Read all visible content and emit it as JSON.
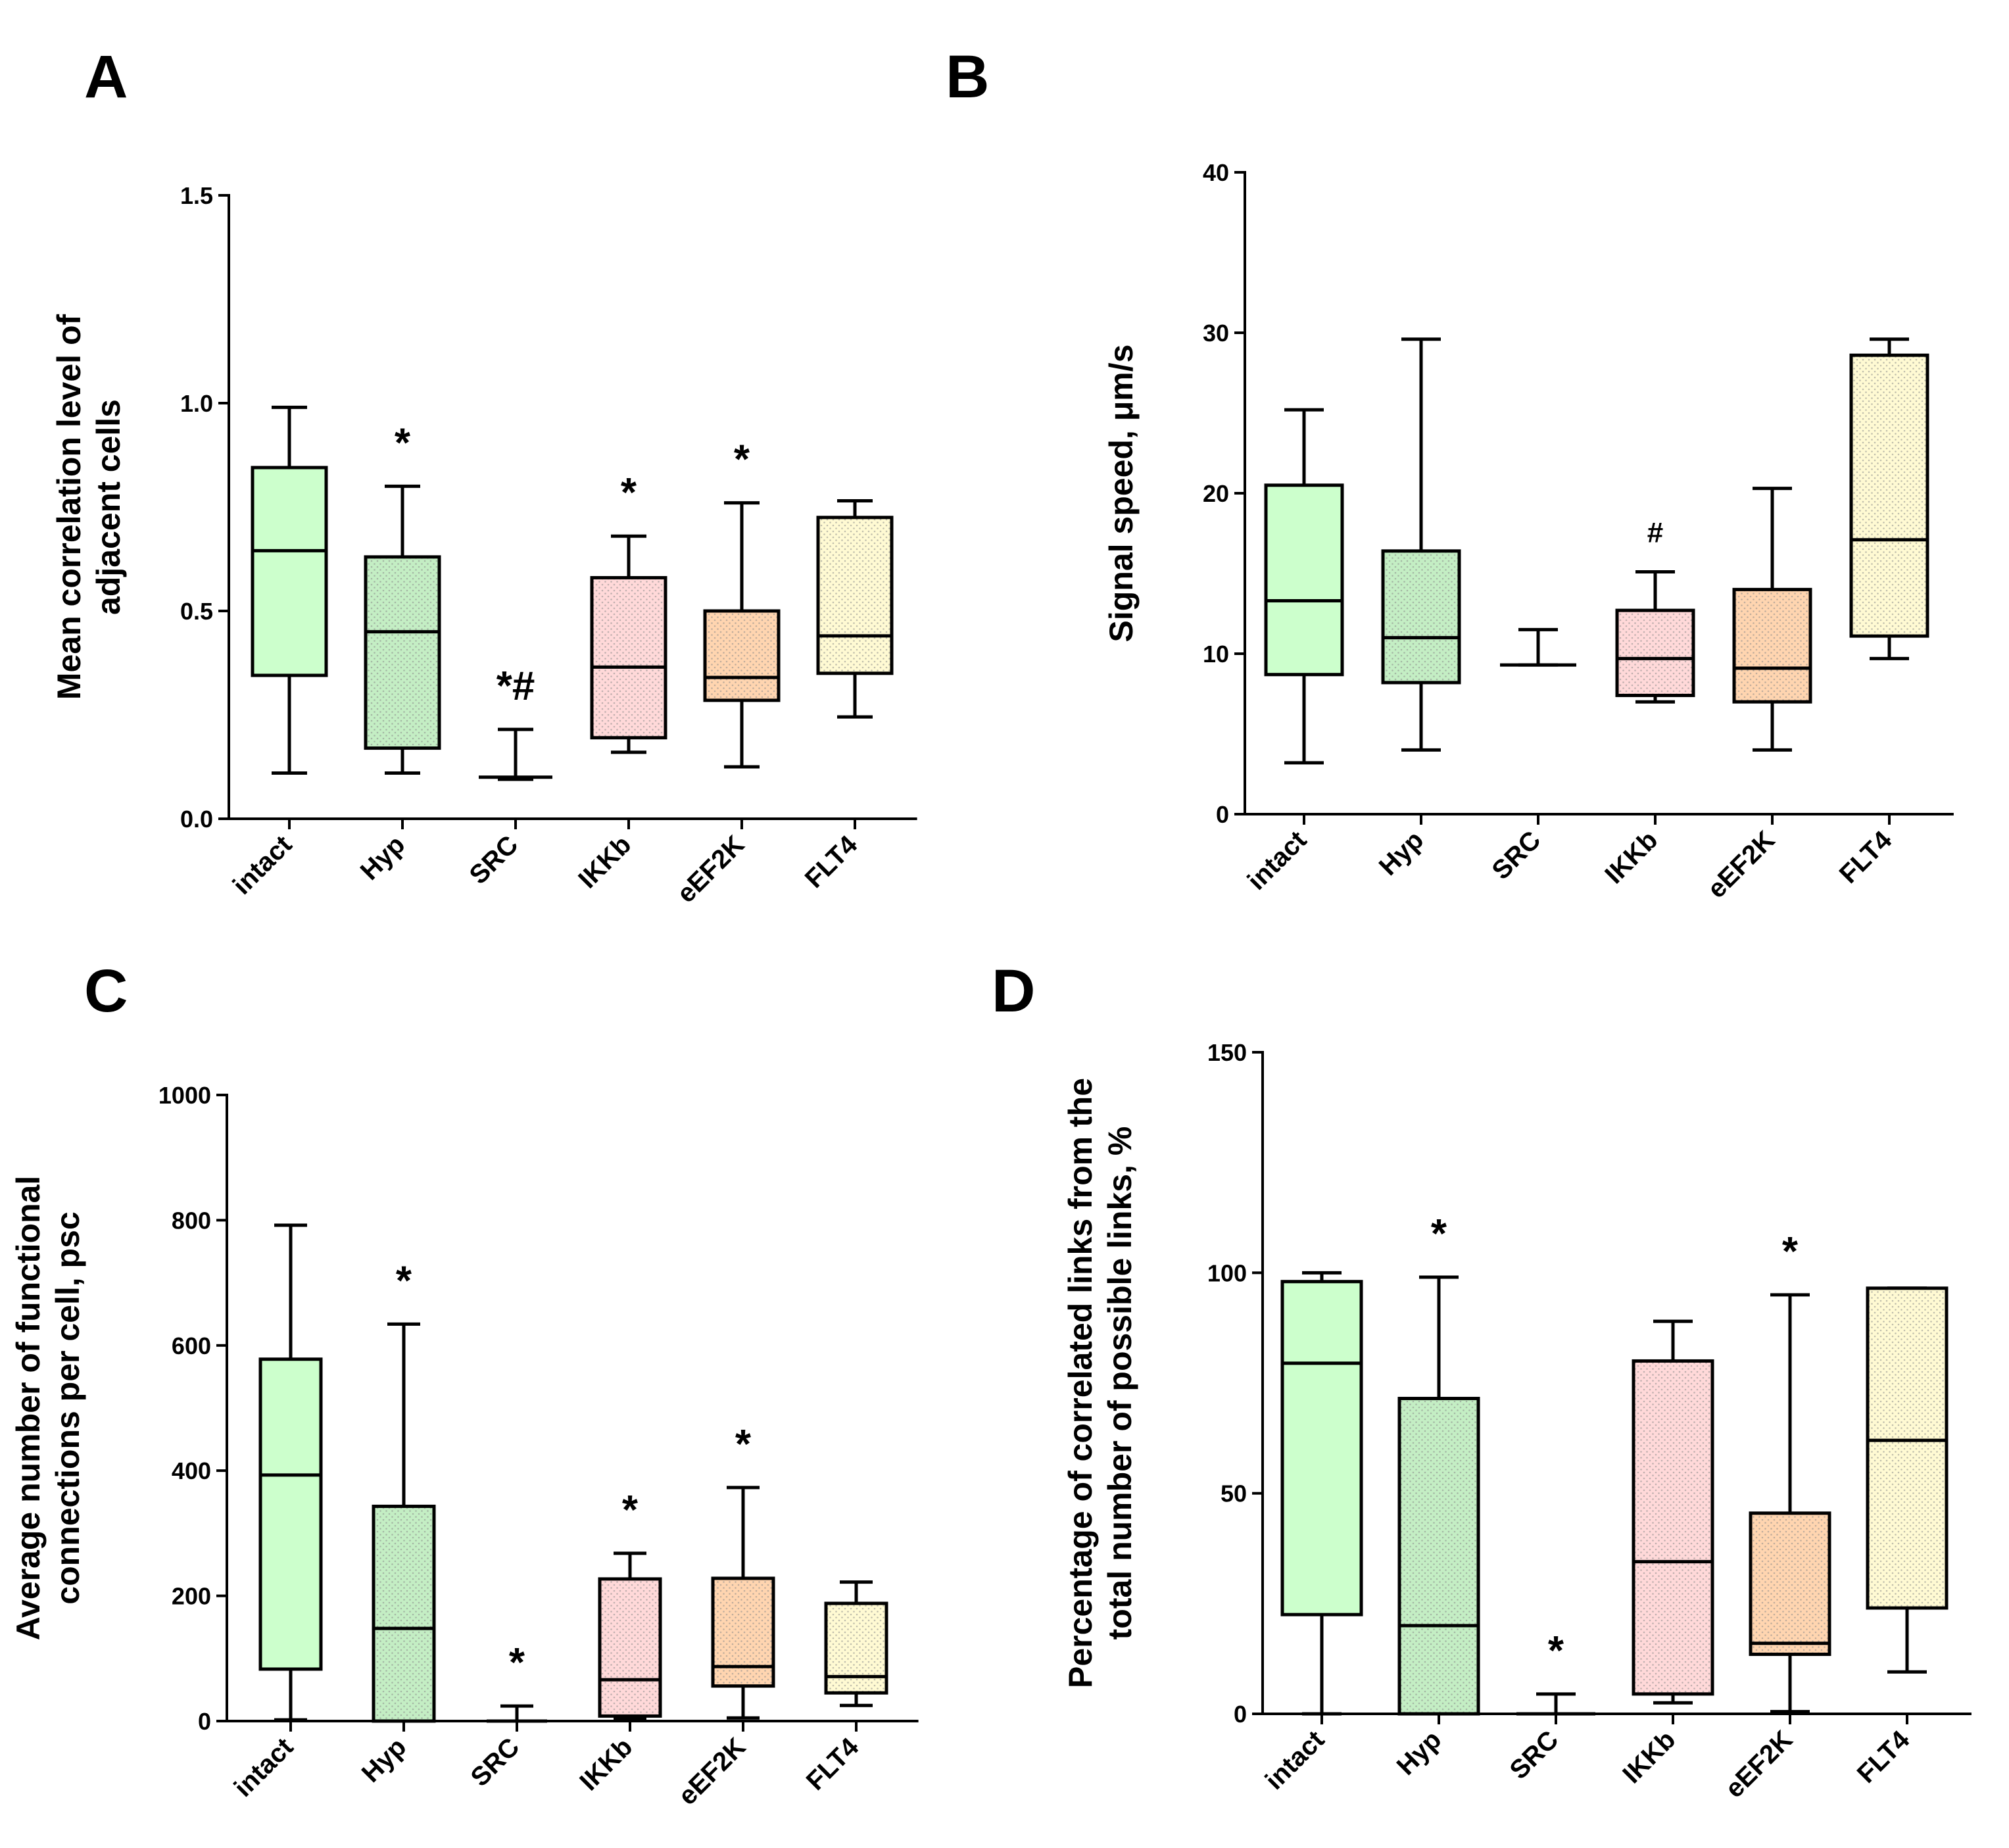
{
  "colors": {
    "intact": "#ccffcc",
    "Hyp": "#c4eec4",
    "SRC": "#ffffff",
    "IKKb": "#ffd9d9",
    "eEF2K": "#ffd5b0",
    "FLT4": "#fffad3",
    "stroke": "#000000"
  },
  "chart_data": [
    {
      "type": "box",
      "panel": "A",
      "ylabel": [
        "Mean correlation level of",
        "adjacent cells"
      ],
      "ylim": [
        0,
        1.5
      ],
      "yticks": [
        "0.0",
        "0.5",
        "1.0",
        "1.5"
      ],
      "ytick_values": [
        0,
        0.5,
        1.0,
        1.5
      ],
      "categories": [
        "intact",
        "Hyp",
        "SRC",
        "IKKb",
        "eEF2K",
        "FLT4"
      ],
      "boxes": [
        {
          "min": 0.11,
          "q1": 0.345,
          "median": 0.645,
          "q3": 0.845,
          "max": 0.99
        },
        {
          "min": 0.11,
          "q1": 0.17,
          "median": 0.45,
          "q3": 0.63,
          "max": 0.8
        },
        {
          "min": 0.095,
          "q1": 0.1,
          "median": 0.1,
          "q3": 0.1,
          "max": 0.215
        },
        {
          "min": 0.16,
          "q1": 0.195,
          "median": 0.365,
          "q3": 0.58,
          "max": 0.68
        },
        {
          "min": 0.125,
          "q1": 0.285,
          "median": 0.34,
          "q3": 0.5,
          "max": 0.76
        },
        {
          "min": 0.245,
          "q1": 0.35,
          "median": 0.44,
          "q3": 0.725,
          "max": 0.765
        }
      ],
      "annotations": [
        "",
        "*",
        "*#",
        "*",
        "*",
        ""
      ]
    },
    {
      "type": "box",
      "panel": "B",
      "ylabel": [
        "Signal speed, μm/s"
      ],
      "ylim": [
        0,
        40
      ],
      "yticks": [
        "0",
        "10",
        "20",
        "30",
        "40"
      ],
      "ytick_values": [
        0,
        10,
        20,
        30,
        40
      ],
      "categories": [
        "intact",
        "Hyp",
        "SRC",
        "IKKb",
        "eEF2K",
        "FLT4"
      ],
      "boxes": [
        {
          "min": 3.2,
          "q1": 8.7,
          "median": 13.3,
          "q3": 20.5,
          "max": 25.2
        },
        {
          "min": 4.0,
          "q1": 8.2,
          "median": 11.0,
          "q3": 16.4,
          "max": 29.6
        },
        {
          "min": 9.3,
          "q1": 9.3,
          "median": 9.3,
          "q3": 9.3,
          "max": 11.5
        },
        {
          "min": 7.0,
          "q1": 7.4,
          "median": 9.7,
          "q3": 12.7,
          "max": 15.1
        },
        {
          "min": 4.0,
          "q1": 7.0,
          "median": 9.1,
          "q3": 14.0,
          "max": 20.3
        },
        {
          "min": 9.7,
          "q1": 11.1,
          "median": 17.1,
          "q3": 28.6,
          "max": 29.6
        }
      ],
      "annotations": [
        "",
        "",
        "",
        "#",
        "",
        ""
      ]
    },
    {
      "type": "box",
      "panel": "C",
      "ylabel": [
        "Average number of functional",
        "connections per cell, psc"
      ],
      "ylim": [
        0,
        1000
      ],
      "yticks": [
        "0",
        "200",
        "400",
        "600",
        "800",
        "1000"
      ],
      "ytick_values": [
        0,
        200,
        400,
        600,
        800,
        1000
      ],
      "categories": [
        "intact",
        "Hyp",
        "SRC",
        "IKKb",
        "eEF2K",
        "FLT4"
      ],
      "boxes": [
        {
          "min": 2,
          "q1": 83,
          "median": 393,
          "q3": 578,
          "max": 792
        },
        {
          "min": 0,
          "q1": 0,
          "median": 148,
          "q3": 343,
          "max": 634
        },
        {
          "min": 0,
          "q1": 0,
          "median": 0,
          "q3": 0,
          "max": 24
        },
        {
          "min": 4,
          "q1": 8,
          "median": 66,
          "q3": 227,
          "max": 268
        },
        {
          "min": 5,
          "q1": 56,
          "median": 87,
          "q3": 228,
          "max": 373
        },
        {
          "min": 25,
          "q1": 45,
          "median": 71,
          "q3": 188,
          "max": 222
        }
      ],
      "annotations": [
        "",
        "*",
        "*",
        "*",
        "*",
        ""
      ]
    },
    {
      "type": "box",
      "panel": "D",
      "ylabel": [
        "Percentage of correlated links from the",
        "total number of possible links, %"
      ],
      "ylim": [
        0,
        150
      ],
      "yticks": [
        "0",
        "50",
        "100",
        "150"
      ],
      "ytick_values": [
        0,
        50,
        100,
        150
      ],
      "categories": [
        "intact",
        "Hyp",
        "SRC",
        "IKKb",
        "eEF2K",
        "FLT4"
      ],
      "boxes": [
        {
          "min": 0,
          "q1": 22.5,
          "median": 79.5,
          "q3": 98.0,
          "max": 100.0
        },
        {
          "min": 0,
          "q1": 0,
          "median": 20.0,
          "q3": 71.5,
          "max": 99.0
        },
        {
          "min": 0,
          "q1": 0,
          "median": 0,
          "q3": 0,
          "max": 4.5
        },
        {
          "min": 2.5,
          "q1": 4.5,
          "median": 34.5,
          "q3": 80.0,
          "max": 89.0
        },
        {
          "min": 0.5,
          "q1": 13.5,
          "median": 16.0,
          "q3": 45.5,
          "max": 95.0
        },
        {
          "min": 9.5,
          "q1": 24.0,
          "median": 62.0,
          "q3": 96.5,
          "max": 96.5
        }
      ],
      "annotations": [
        "",
        "*",
        "*",
        "",
        "*",
        ""
      ]
    }
  ]
}
